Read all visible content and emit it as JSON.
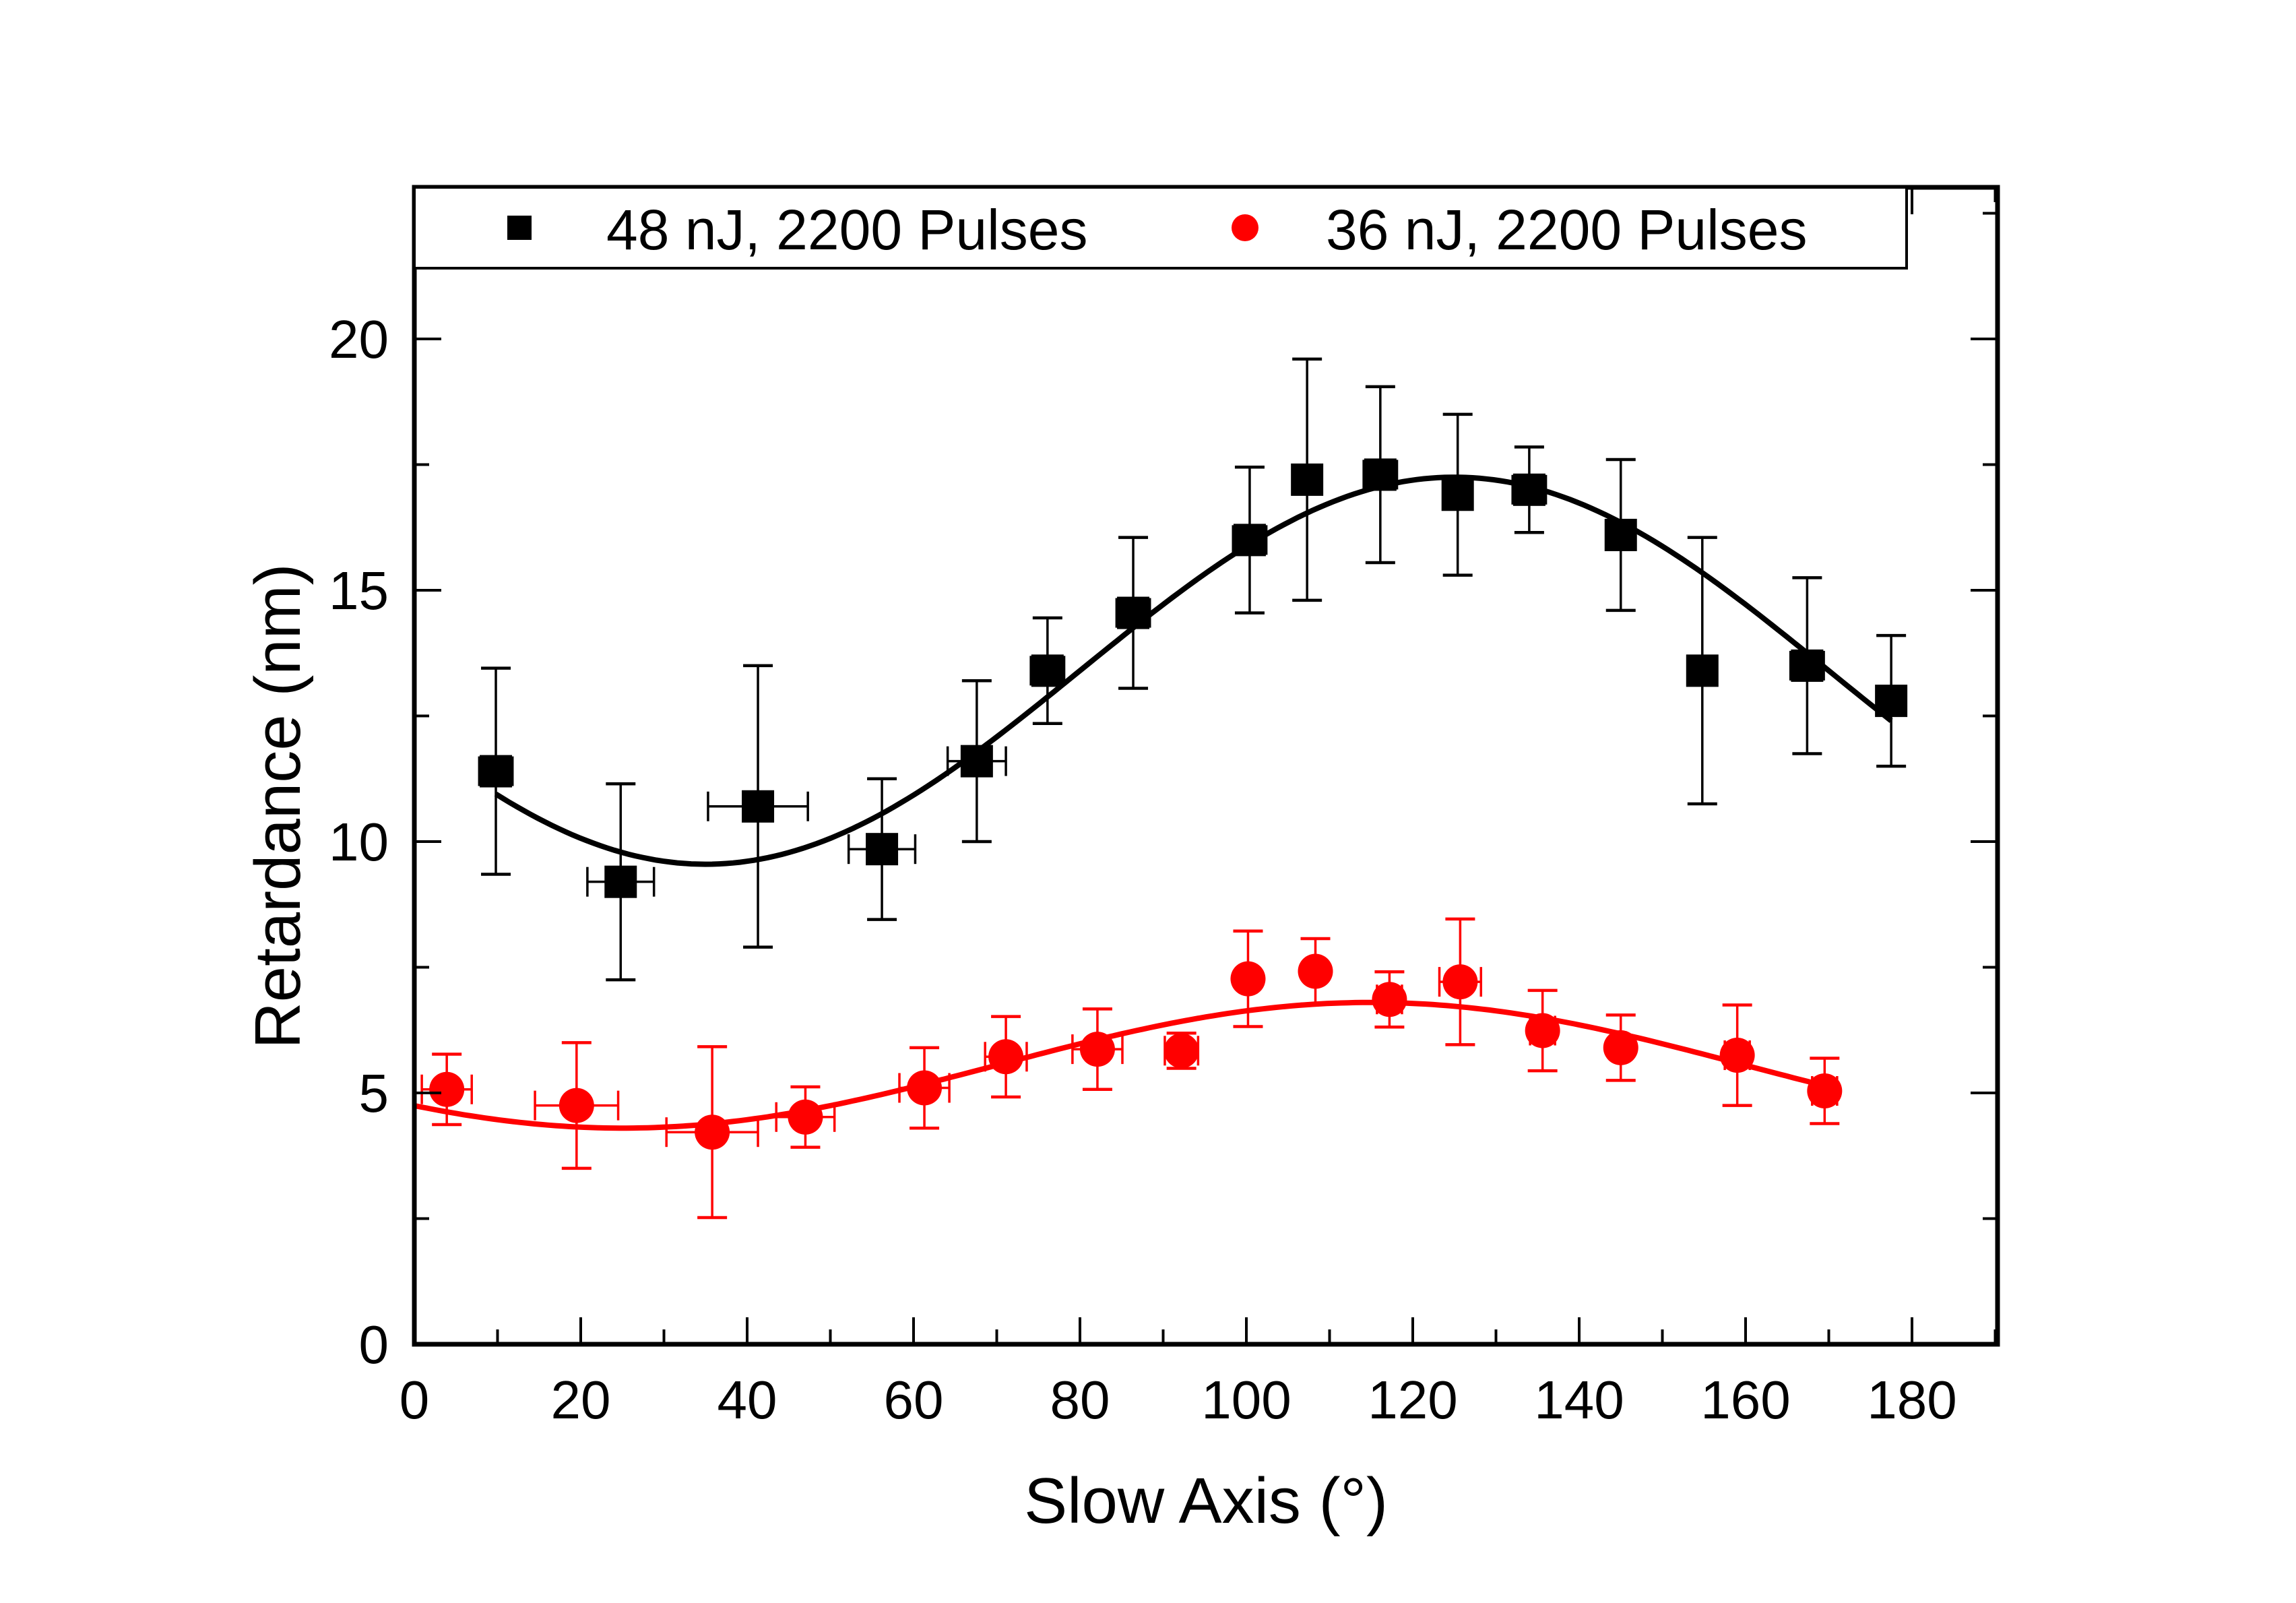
{
  "chart_data": {
    "type": "scatter",
    "title": "",
    "xlabel": "Slow Axis (°)",
    "ylabel": "Retardance (nm)",
    "xlim": [
      0,
      190
    ],
    "ylim": [
      0,
      23
    ],
    "xticks": [
      0,
      20,
      40,
      60,
      80,
      100,
      120,
      140,
      160,
      180
    ],
    "xtick_labels": [
      "0",
      "20",
      "40",
      "60",
      "80",
      "100",
      "120",
      "140",
      "160",
      "180"
    ],
    "xminor_step": 10,
    "yticks": [
      0,
      5,
      10,
      15,
      20
    ],
    "ytick_labels": [
      "0",
      "5",
      "10",
      "15",
      "20"
    ],
    "yminor_step": 2.5,
    "grid": false,
    "legend_position": "top",
    "series": [
      {
        "name": "48 nJ, 2200 Pulses",
        "color": "#000000",
        "marker": "square",
        "x": [
          9.8,
          24.8,
          41.3,
          56.2,
          67.6,
          76.1,
          86.4,
          100.4,
          107.3,
          116.1,
          125.4,
          134.0,
          145.0,
          154.8,
          167.4,
          177.5
        ],
        "y": [
          11.4,
          9.2,
          10.7,
          9.85,
          11.6,
          13.4,
          14.55,
          16.0,
          17.2,
          17.3,
          16.9,
          17.0,
          16.1,
          13.4,
          13.5,
          12.8
        ],
        "yerr": [
          2.05,
          1.95,
          2.8,
          1.4,
          1.6,
          1.05,
          1.5,
          1.45,
          2.4,
          1.75,
          1.6,
          0.85,
          1.5,
          2.65,
          1.75,
          1.3
        ],
        "xerr": [
          2.0,
          4.0,
          6.0,
          4.0,
          3.5,
          2.0,
          2.0,
          2.0,
          1.0,
          2.0,
          1.5,
          2.0,
          0.8,
          1.5,
          2.0,
          1.5
        ],
        "fit": {
          "type": "sine",
          "x_range": [
            9.8,
            177.5
          ],
          "mean": 13.4,
          "amplitude": 3.85,
          "peak_x": 125
        }
      },
      {
        "name": "36 nJ, 2200 Pulses",
        "color": "#ff0000",
        "marker": "circle",
        "x": [
          3.9,
          19.5,
          35.8,
          47.0,
          61.3,
          71.1,
          82.1,
          92.2,
          100.2,
          108.3,
          117.2,
          125.7,
          135.6,
          145.0,
          159.0,
          169.5
        ],
        "y": [
          5.07,
          4.75,
          4.22,
          4.52,
          5.1,
          5.72,
          5.87,
          5.84,
          7.27,
          7.42,
          6.86,
          7.21,
          6.24,
          5.9,
          5.75,
          5.04
        ],
        "yerr": [
          0.7,
          1.25,
          1.7,
          0.6,
          0.8,
          0.8,
          0.8,
          0.35,
          0.95,
          0.65,
          0.55,
          1.25,
          0.8,
          0.65,
          1.0,
          0.65
        ],
        "xerr": [
          3.0,
          5.0,
          5.5,
          3.5,
          3.0,
          2.5,
          3.0,
          2.0,
          1.0,
          1.0,
          1.5,
          2.5,
          1.5,
          1.0,
          1.5,
          1.5
        ],
        "fit": {
          "type": "sine",
          "x_range": [
            0,
            170
          ],
          "mean": 5.55,
          "amplitude": 1.25,
          "peak_x": 115
        }
      }
    ]
  }
}
